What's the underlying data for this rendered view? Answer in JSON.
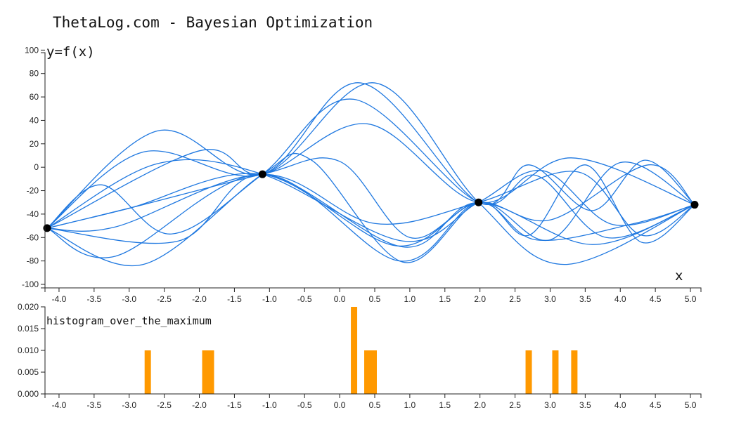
{
  "title": "ThetaLog.com - Bayesian Optimization",
  "colors": {
    "curve": "#1f78e0",
    "bar": "#ff9900",
    "point": "#000000",
    "axis": "#222222"
  },
  "chart_data": [
    {
      "type": "line",
      "ylabel": "y=f(x)",
      "xlabel": "x",
      "xlim": [
        -4.2,
        5.15
      ],
      "ylim": [
        -103,
        105
      ],
      "xticks": [
        -4.0,
        -3.5,
        -3.0,
        -2.5,
        -2.0,
        -1.5,
        -1.0,
        -0.5,
        0.0,
        0.5,
        1.0,
        1.5,
        2.0,
        2.5,
        3.0,
        3.5,
        4.0,
        4.5,
        5.0
      ],
      "xtick_labels": [
        "-4.0",
        "-3.5",
        "-3.0",
        "-2.5",
        "-2.0",
        "-1.5",
        "-1.0",
        "-0.5",
        "0.0",
        "0.5",
        "1.0",
        "1.5",
        "2.0",
        "2.5",
        "3.0",
        "3.5",
        "4.0",
        "4.5",
        "5.0"
      ],
      "yticks": [
        -100,
        -80,
        -60,
        -40,
        -20,
        0,
        20,
        40,
        60,
        80,
        100
      ],
      "ytick_labels": [
        "-100",
        "-80",
        "-60",
        "-40",
        "-20",
        "0",
        "20",
        "40",
        "60",
        "80",
        "100"
      ],
      "observed_points": [
        {
          "x": -4.17,
          "y": -52
        },
        {
          "x": -1.1,
          "y": -6
        },
        {
          "x": 1.98,
          "y": -30
        },
        {
          "x": 5.06,
          "y": -32
        }
      ],
      "sample_curves": [
        {
          "values": [
            {
              "x": -4.17,
              "y": -52
            },
            {
              "x": -2.6,
              "y": 31
            },
            {
              "x": -1.1,
              "y": -6
            },
            {
              "x": 0.5,
              "y": 72
            },
            {
              "x": 1.98,
              "y": -30
            },
            {
              "x": 3.2,
              "y": -83
            },
            {
              "x": 5.06,
              "y": -32
            }
          ]
        },
        {
          "values": [
            {
              "x": -4.17,
              "y": -52
            },
            {
              "x": -2.8,
              "y": 13
            },
            {
              "x": -1.1,
              "y": -6
            },
            {
              "x": 0.3,
              "y": 72
            },
            {
              "x": 1.98,
              "y": -30
            },
            {
              "x": 2.7,
              "y": 2
            },
            {
              "x": 3.6,
              "y": -37
            },
            {
              "x": 4.35,
              "y": 6
            },
            {
              "x": 5.06,
              "y": -32
            }
          ]
        },
        {
          "values": [
            {
              "x": -4.17,
              "y": -52
            },
            {
              "x": -3.4,
              "y": -15
            },
            {
              "x": -2.4,
              "y": -57
            },
            {
              "x": -1.1,
              "y": -6
            },
            {
              "x": 0.2,
              "y": 58
            },
            {
              "x": 1.98,
              "y": -30
            },
            {
              "x": 2.8,
              "y": -7
            },
            {
              "x": 3.8,
              "y": -60
            },
            {
              "x": 5.06,
              "y": -32
            }
          ]
        },
        {
          "values": [
            {
              "x": -4.17,
              "y": -52
            },
            {
              "x": -2.0,
              "y": 14
            },
            {
              "x": -1.1,
              "y": -6
            },
            {
              "x": 0.4,
              "y": 37
            },
            {
              "x": 1.98,
              "y": -30
            },
            {
              "x": 3.3,
              "y": 8
            },
            {
              "x": 5.06,
              "y": -32
            }
          ]
        },
        {
          "values": [
            {
              "x": -4.17,
              "y": -52
            },
            {
              "x": -2.8,
              "y": -83
            },
            {
              "x": -1.1,
              "y": -6
            },
            {
              "x": -0.4,
              "y": 6
            },
            {
              "x": 0.9,
              "y": -81
            },
            {
              "x": 1.98,
              "y": -30
            },
            {
              "x": 2.7,
              "y": -58
            },
            {
              "x": 3.5,
              "y": 2
            },
            {
              "x": 4.3,
              "y": -64
            },
            {
              "x": 5.06,
              "y": -32
            }
          ]
        },
        {
          "values": [
            {
              "x": -4.17,
              "y": -52
            },
            {
              "x": -3.2,
              "y": -76
            },
            {
              "x": -1.1,
              "y": -6
            },
            {
              "x": 0.85,
              "y": -80
            },
            {
              "x": 1.98,
              "y": -30
            },
            {
              "x": 3.0,
              "y": -62
            },
            {
              "x": 4.0,
              "y": 4
            },
            {
              "x": 5.06,
              "y": -32
            }
          ]
        },
        {
          "values": [
            {
              "x": -4.17,
              "y": -52
            },
            {
              "x": -2.3,
              "y": -63
            },
            {
              "x": -1.1,
              "y": -6
            },
            {
              "x": 0.9,
              "y": -68
            },
            {
              "x": 1.98,
              "y": -30
            },
            {
              "x": 3.6,
              "y": -66
            },
            {
              "x": 5.06,
              "y": -32
            }
          ]
        },
        {
          "values": [
            {
              "x": -4.17,
              "y": -52
            },
            {
              "x": -3.0,
              "y": -35
            },
            {
              "x": -1.1,
              "y": -6
            },
            {
              "x": 0.8,
              "y": -67
            },
            {
              "x": 1.98,
              "y": -30
            },
            {
              "x": 2.8,
              "y": -62
            },
            {
              "x": 4.2,
              "y": -48
            },
            {
              "x": 5.06,
              "y": -32
            }
          ]
        },
        {
          "values": [
            {
              "x": -4.17,
              "y": -52
            },
            {
              "x": -3.2,
              "y": -51
            },
            {
              "x": -1.1,
              "y": -6
            },
            {
              "x": 0.5,
              "y": -48
            },
            {
              "x": 1.98,
              "y": -30
            },
            {
              "x": 3.4,
              "y": -4
            },
            {
              "x": 4.3,
              "y": -58
            },
            {
              "x": 5.06,
              "y": -32
            }
          ]
        },
        {
          "values": [
            {
              "x": -4.17,
              "y": -52
            },
            {
              "x": -2.6,
              "y": 3
            },
            {
              "x": -1.1,
              "y": -6
            },
            {
              "x": 0.9,
              "y": -63
            },
            {
              "x": 1.98,
              "y": -30
            },
            {
              "x": 2.9,
              "y": -3
            },
            {
              "x": 3.9,
              "y": -49
            },
            {
              "x": 5.06,
              "y": -32
            }
          ]
        },
        {
          "values": [
            {
              "x": -4.17,
              "y": -52
            },
            {
              "x": -3.0,
              "y": -35
            },
            {
              "x": -1.1,
              "y": -6
            },
            {
              "x": 0.0,
              "y": 5
            },
            {
              "x": 1.0,
              "y": -60
            },
            {
              "x": 1.98,
              "y": -30
            },
            {
              "x": 3.0,
              "y": -45
            },
            {
              "x": 4.4,
              "y": 2
            },
            {
              "x": 5.06,
              "y": -32
            }
          ]
        }
      ]
    },
    {
      "type": "bar",
      "title": "histogram_over_the_maximum",
      "xlim": [
        -4.2,
        5.15
      ],
      "ylim": [
        0,
        0.02
      ],
      "xticks": [
        -4.0,
        -3.5,
        -3.0,
        -2.5,
        -2.0,
        -1.5,
        -1.0,
        -0.5,
        0.0,
        0.5,
        1.0,
        1.5,
        2.0,
        2.5,
        3.0,
        3.5,
        4.0,
        4.5,
        5.0
      ],
      "xtick_labels": [
        "-4.0",
        "-3.5",
        "-3.0",
        "-2.5",
        "-2.0",
        "-1.5",
        "-1.0",
        "-0.5",
        "0.0",
        "0.5",
        "1.0",
        "1.5",
        "2.0",
        "2.5",
        "3.0",
        "3.5",
        "4.0",
        "4.5",
        "5.0"
      ],
      "yticks": [
        0,
        0.005,
        0.01,
        0.015,
        0.02
      ],
      "ytick_labels": [
        "0.000",
        "0.005",
        "0.010",
        "0.015",
        "0.020"
      ],
      "bars": [
        {
          "x0": -2.78,
          "x1": -2.69,
          "value": 0.01
        },
        {
          "x0": -1.96,
          "x1": -1.79,
          "value": 0.01
        },
        {
          "x0": 0.16,
          "x1": 0.25,
          "value": 0.02
        },
        {
          "x0": 0.35,
          "x1": 0.53,
          "value": 0.01
        },
        {
          "x0": 2.65,
          "x1": 2.74,
          "value": 0.01
        },
        {
          "x0": 3.03,
          "x1": 3.12,
          "value": 0.01
        },
        {
          "x0": 3.3,
          "x1": 3.39,
          "value": 0.01
        }
      ]
    }
  ]
}
